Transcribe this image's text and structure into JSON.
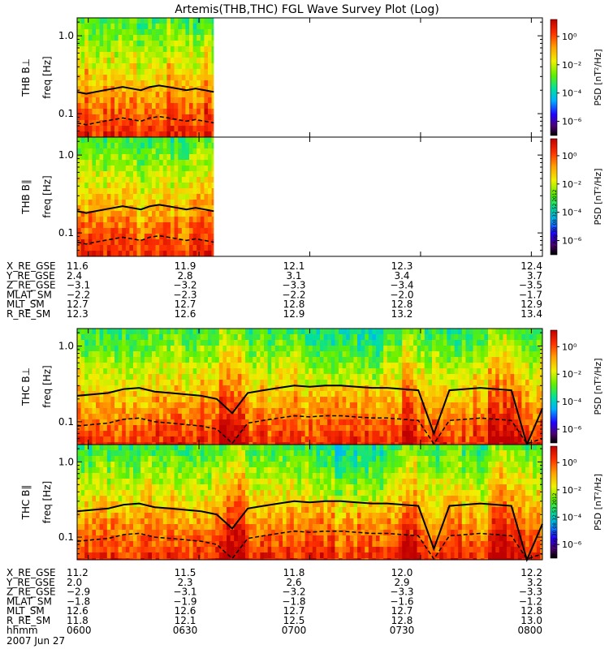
{
  "chart_data": {
    "type": "heatmap",
    "title": "Artemis(THB,THC) FGL Wave Survey Plot (Log)",
    "date_label": "2007 Jun 27",
    "colorbar": {
      "label": "PSD [nT²/Hz]",
      "ticks": [
        "10⁰",
        "10⁻²",
        "10⁻⁴",
        "10⁻⁶"
      ],
      "tick_values": [
        0,
        -2,
        -4,
        -6
      ],
      "range_log": [
        -7,
        1.2
      ]
    },
    "panel_ticks": [
      "1.0",
      "0.1"
    ],
    "panel_tick_values": [
      1.0,
      0.1
    ],
    "freq_range_hz": [
      0.05,
      1.7
    ],
    "panels": [
      {
        "label": "THB B⊥",
        "ylabel": "freq [Hz]",
        "group": "thb",
        "timestamp": ""
      },
      {
        "label": "THB B∥",
        "ylabel": "freq [Hz]",
        "group": "thb",
        "timestamp": "Thu Aug 30 08:32:52 2012"
      },
      {
        "label": "THC B⊥",
        "ylabel": "freq [Hz]",
        "group": "thc",
        "timestamp": ""
      },
      {
        "label": "THC B∥",
        "ylabel": "freq [Hz]",
        "group": "thc",
        "timestamp": "Thu Aug 30 08:32:53 2012"
      }
    ],
    "x_time_hhmm": [
      "0600",
      "0630",
      "0700",
      "0730",
      "0800"
    ],
    "thb_data_end_hhmm": "0634",
    "gyrofreq_line_hz": {
      "thb": [
        0.19,
        0.18,
        0.19,
        0.2,
        0.21,
        0.22,
        0.21,
        0.2,
        0.22,
        0.23,
        0.22,
        0.21,
        0.2,
        0.21,
        0.2,
        0.19
      ],
      "thc": [
        0.22,
        0.23,
        0.24,
        0.27,
        0.28,
        0.25,
        0.24,
        0.23,
        0.22,
        0.2,
        0.13,
        0.24,
        0.26,
        0.28,
        0.3,
        0.29,
        0.3,
        0.3,
        0.29,
        0.28,
        0.28,
        0.27,
        0.26,
        0.07,
        0.26,
        0.27,
        0.28,
        0.27,
        0.26,
        0.05,
        0.15
      ]
    },
    "thb_ephemeris": {
      "rows": [
        {
          "label": "X_RE_GSE",
          "values": [
            "11.6",
            "11.9",
            "12.1",
            "12.3",
            "12.4"
          ]
        },
        {
          "label": "Y_RE_GSE",
          "values": [
            "2.4",
            "2.8",
            "3.1",
            "3.4",
            "3.7"
          ]
        },
        {
          "label": "Z_RE_GSE",
          "values": [
            "−3.1",
            "−3.2",
            "−3.3",
            "−3.4",
            "−3.5"
          ]
        },
        {
          "label": "MLAT_SM",
          "values": [
            "−2.2",
            "−2.3",
            "−2.2",
            "−2.0",
            "−1.7"
          ]
        },
        {
          "label": "MLT_SM",
          "values": [
            "12.7",
            "12.7",
            "12.8",
            "12.8",
            "12.9"
          ]
        },
        {
          "label": "R_RE_SM",
          "values": [
            "12.3",
            "12.6",
            "12.9",
            "13.2",
            "13.4"
          ]
        }
      ]
    },
    "thc_ephemeris": {
      "rows": [
        {
          "label": "X_RE_GSE",
          "values": [
            "11.2",
            "11.5",
            "11.8",
            "12.0",
            "12.2"
          ]
        },
        {
          "label": "Y_RE_GSE",
          "values": [
            "2.0",
            "2.3",
            "2.6",
            "2.9",
            "3.2"
          ]
        },
        {
          "label": "Z_RE_GSE",
          "values": [
            "−2.9",
            "−3.1",
            "−3.2",
            "−3.3",
            "−3.3"
          ]
        },
        {
          "label": "MLAT_SM",
          "values": [
            "−1.8",
            "−1.9",
            "−1.8",
            "−1.6",
            "−1.2"
          ]
        },
        {
          "label": "MLT_SM",
          "values": [
            "12.6",
            "12.6",
            "12.7",
            "12.7",
            "12.8"
          ]
        },
        {
          "label": "R_RE_SM",
          "values": [
            "11.8",
            "12.1",
            "12.5",
            "12.8",
            "13.0"
          ]
        },
        {
          "label": "hhmm",
          "values": [
            "0600",
            "0630",
            "0700",
            "0730",
            "0800"
          ]
        }
      ]
    }
  }
}
